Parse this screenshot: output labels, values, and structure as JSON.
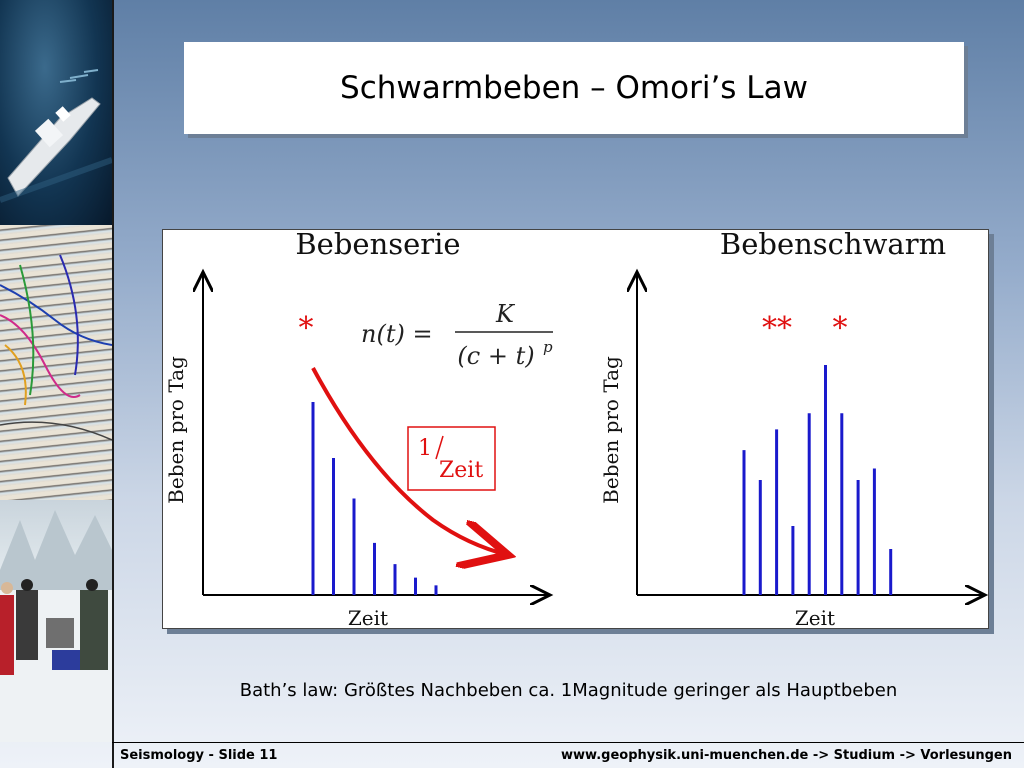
{
  "slide": {
    "title": "Schwarmbeben – Omori’s Law",
    "caption": "Bath’s law: Größtes Nachbeben ca. 1Magnitude geringer als Hauptbeben",
    "footer_left": "Seismology - Slide 11",
    "footer_right": "www.geophysik.uni-muenchen.de -> Studium -> Vorlesungen"
  },
  "figure": {
    "left_title": "Bebenserie",
    "right_title": "Bebenschwarm",
    "y_label": "Beben pro Tag",
    "x_label": "Zeit",
    "left_star": "*",
    "right_stars_a": "**",
    "right_stars_b": "*",
    "formula_lhs": "n(t) =",
    "formula_num": "K",
    "formula_den": "(c + t)",
    "formula_exp": "p",
    "box_num": "1",
    "box_den": "Zeit",
    "left_values": [
      1.0,
      0.71,
      0.5,
      0.27,
      0.16,
      0.09,
      0.05
    ],
    "right_values": [
      0.63,
      0.5,
      0.72,
      0.3,
      0.79,
      1.0,
      0.79,
      0.5,
      0.55,
      0.2
    ],
    "bar_color": "#1a1acc",
    "accent_color": "#e01010"
  },
  "sidebar_photos": [
    "research-vessel",
    "seismic-section",
    "field-crew-in-snow"
  ]
}
